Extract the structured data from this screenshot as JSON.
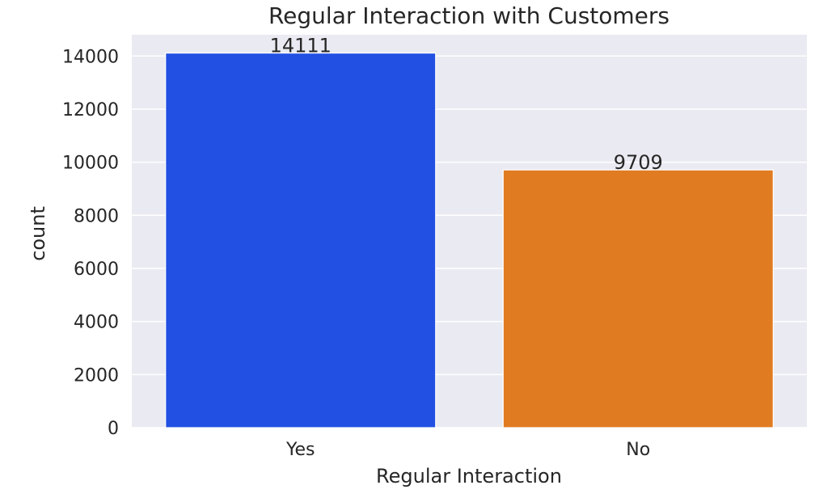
{
  "chart_data": {
    "type": "bar",
    "title": "Regular Interaction with Customers",
    "xlabel": "Regular Interaction",
    "ylabel": "count",
    "categories": [
      "Yes",
      "No"
    ],
    "values": [
      14111,
      9709
    ],
    "data_labels": [
      "14111",
      "9709"
    ],
    "colors": [
      "#2150e2",
      "#e07b21"
    ],
    "ylim": [
      0,
      14800
    ],
    "yticks": [
      0,
      2000,
      4000,
      6000,
      8000,
      10000,
      12000,
      14000
    ],
    "ytick_labels": [
      "0",
      "2000",
      "4000",
      "6000",
      "8000",
      "10000",
      "12000",
      "14000"
    ],
    "grid": true,
    "background": "#eaeaf2",
    "legend": "none"
  }
}
